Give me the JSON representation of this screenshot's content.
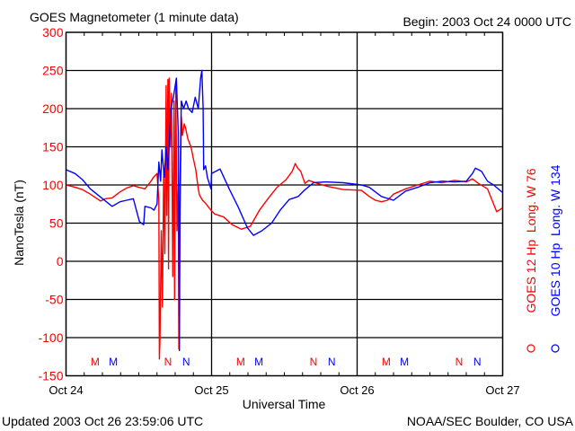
{
  "chart_data": {
    "type": "line",
    "title": "GOES Magnetometer (1 minute data)",
    "begin_label": "Begin:  2003 Oct 24 0000 UTC",
    "xlabel": "Universal Time",
    "ylabel": "NanoTesla (nT)",
    "ylim": [
      -150,
      300
    ],
    "xlim_hours": [
      0,
      72
    ],
    "yticks": [
      300,
      250,
      200,
      150,
      100,
      50,
      0,
      -50,
      -100,
      -150
    ],
    "ytick_labels": [
      "300",
      "250",
      "200",
      "150",
      "100",
      "50",
      "0",
      "-50",
      "-100",
      "-150"
    ],
    "xticks": [
      {
        "hour": 0,
        "label": "Oct 24"
      },
      {
        "hour": 24,
        "label": "Oct 25"
      },
      {
        "hour": 48,
        "label": "Oct 26"
      },
      {
        "hour": 72,
        "label": "Oct 27"
      }
    ],
    "grid": true,
    "series": [
      {
        "name": "GOES 12 Hp  Long. W 76",
        "color": "#ff0000",
        "x_hours": [
          0,
          1.5,
          2.7,
          4,
          5.7,
          6.5,
          7.6,
          8.9,
          10,
          11.1,
          12,
          13,
          14,
          14.5,
          15,
          15.3,
          15.4,
          15.5,
          15.7,
          15.9,
          16.1,
          16.3,
          16.5,
          16.6,
          16.8,
          16.9,
          17,
          17.2,
          17.4,
          17.6,
          17.8,
          17.9,
          18.1,
          18.3,
          18.5,
          18.6,
          18.8,
          19,
          19.2,
          19.5,
          19.7,
          20.1,
          20.6,
          21,
          21.4,
          21.8,
          22,
          22.5,
          23,
          24,
          24.5,
          26,
          27.4,
          28.9,
          30.4,
          31.9,
          33.4,
          34.8,
          36.3,
          37.3,
          37.8,
          38.2,
          38.7,
          39.4,
          40,
          41.5,
          43.2,
          45.7,
          48.7,
          50,
          51,
          52,
          53,
          54,
          56,
          58,
          60,
          62,
          64,
          66,
          67,
          68,
          69.5,
          70.5,
          71,
          72
        ],
        "values": [
          100,
          97,
          94,
          88,
          79,
          82,
          83,
          91,
          96,
          99,
          97,
          95,
          105,
          111,
          115,
          80,
          -128,
          -100,
          40,
          -60,
          120,
          10,
          230,
          60,
          238,
          -10,
          240,
          150,
          220,
          -20,
          210,
          -50,
          230,
          40,
          100,
          -115,
          60,
          190,
          165,
          180,
          175,
          160,
          150,
          134,
          120,
          95,
          87,
          80,
          76,
          66,
          62,
          58,
          48,
          42,
          46,
          67,
          83,
          97,
          107,
          118,
          128,
          122,
          118,
          102,
          106,
          102,
          98,
          94,
          93,
          85,
          80,
          78,
          80,
          88,
          95,
          100,
          105,
          103,
          106,
          104,
          108,
          102,
          95,
          75,
          65,
          70
        ]
      },
      {
        "name": "GOES 10 Hp  Long. W 134",
        "color": "#0000ff",
        "x_hours": [
          0,
          1.5,
          2.7,
          4,
          5.7,
          7.6,
          8.9,
          10,
          11.1,
          12.1,
          12.8,
          13,
          14,
          14.5,
          15,
          15.3,
          15.6,
          15.8,
          16.2,
          16.5,
          16.8,
          17.3,
          17.7,
          18.2,
          18.5,
          18.7,
          18.8,
          19,
          19.4,
          19.8,
          20.2,
          20.8,
          21.3,
          21.8,
          22.2,
          22.4,
          22.6,
          22.7,
          23,
          23.3,
          23.9,
          24,
          25.4,
          26.9,
          28.4,
          29.9,
          30.9,
          32.3,
          33.9,
          35.3,
          36.8,
          38.3,
          39.3,
          40.8,
          42.8,
          45.7,
          48.7,
          50,
          52,
          54,
          56,
          58,
          60,
          62,
          64,
          66,
          67,
          67.5,
          68.5,
          69.5,
          70.5,
          72
        ],
        "values": [
          120,
          115,
          107,
          95,
          84,
          72,
          78,
          80,
          82,
          52,
          48,
          72,
          70,
          67,
          75,
          130,
          105,
          146,
          110,
          150,
          120,
          200,
          215,
          240,
          170,
          -117,
          100,
          210,
          200,
          210,
          200,
          195,
          215,
          200,
          240,
          250,
          200,
          120,
          125,
          110,
          95,
          115,
          121,
          95,
          71,
          44,
          34,
          40,
          50,
          67,
          81,
          85,
          93,
          103,
          104,
          103,
          100,
          97,
          85,
          80,
          92,
          97,
          103,
          105,
          104,
          105,
          115,
          122,
          118,
          105,
          100,
          90
        ]
      }
    ],
    "markers": [
      {
        "label": "M",
        "hour": 4.8,
        "series": "GOES 12",
        "color": "#ff0000"
      },
      {
        "label": "M",
        "hour": 7.8,
        "series": "GOES 10",
        "color": "#0000ff"
      },
      {
        "label": "N",
        "hour": 16.8,
        "series": "GOES 12",
        "color": "#ff0000"
      },
      {
        "label": "N",
        "hour": 19.8,
        "series": "GOES 10",
        "color": "#0000ff"
      },
      {
        "label": "M",
        "hour": 28.8,
        "series": "GOES 12",
        "color": "#ff0000"
      },
      {
        "label": "M",
        "hour": 31.8,
        "series": "GOES 10",
        "color": "#0000ff"
      },
      {
        "label": "N",
        "hour": 40.8,
        "series": "GOES 12",
        "color": "#ff0000"
      },
      {
        "label": "N",
        "hour": 43.8,
        "series": "GOES 10",
        "color": "#0000ff"
      },
      {
        "label": "M",
        "hour": 52.8,
        "series": "GOES 12",
        "color": "#ff0000"
      },
      {
        "label": "M",
        "hour": 55.8,
        "series": "GOES 10",
        "color": "#0000ff"
      },
      {
        "label": "N",
        "hour": 64.8,
        "series": "GOES 12",
        "color": "#ff0000"
      },
      {
        "label": "N",
        "hour": 67.8,
        "series": "GOES 10",
        "color": "#0000ff"
      }
    ]
  },
  "footer": {
    "updated": "Updated 2003 Oct 26 23:59:06 UTC",
    "source": "NOAA/SEC Boulder, CO USA"
  }
}
